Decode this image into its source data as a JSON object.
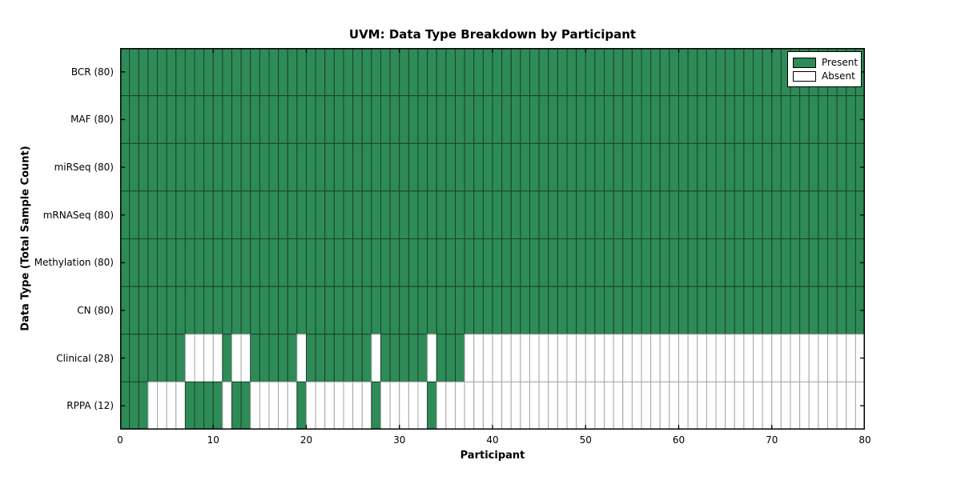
{
  "chart_data": {
    "type": "heatmap",
    "title": "UVM: Data Type Breakdown by Participant",
    "xlabel": "Participant",
    "ylabel": "Data Type (Total Sample Count)",
    "n_participants": 80,
    "x_ticks": [
      0,
      10,
      20,
      30,
      40,
      50,
      60,
      70,
      80
    ],
    "x_range": [
      0,
      80
    ],
    "rows": [
      {
        "label": "BCR (80)",
        "data_type": "BCR",
        "count": 80,
        "present_ranges": [
          [
            0,
            79
          ]
        ]
      },
      {
        "label": "MAF (80)",
        "data_type": "MAF",
        "count": 80,
        "present_ranges": [
          [
            0,
            79
          ]
        ]
      },
      {
        "label": "miRSeq (80)",
        "data_type": "miRSeq",
        "count": 80,
        "present_ranges": [
          [
            0,
            79
          ]
        ]
      },
      {
        "label": "mRNASeq (80)",
        "data_type": "mRNASeq",
        "count": 80,
        "present_ranges": [
          [
            0,
            79
          ]
        ]
      },
      {
        "label": "Methylation (80)",
        "data_type": "Methylation",
        "count": 80,
        "present_ranges": [
          [
            0,
            79
          ]
        ]
      },
      {
        "label": "CN (80)",
        "data_type": "CN",
        "count": 80,
        "present_ranges": [
          [
            0,
            79
          ]
        ]
      },
      {
        "label": "Clinical (28)",
        "data_type": "Clinical",
        "count": 28,
        "present_ranges": [
          [
            0,
            6
          ],
          [
            11,
            11
          ],
          [
            14,
            18
          ],
          [
            20,
            26
          ],
          [
            28,
            32
          ],
          [
            34,
            36
          ]
        ]
      },
      {
        "label": "RPPA (12)",
        "data_type": "RPPA",
        "count": 12,
        "present_ranges": [
          [
            0,
            2
          ],
          [
            7,
            10
          ],
          [
            12,
            13
          ],
          [
            19,
            19
          ],
          [
            27,
            27
          ],
          [
            33,
            33
          ]
        ]
      }
    ],
    "legend": [
      {
        "label": "Present",
        "color": "#2e8b57"
      },
      {
        "label": "Absent",
        "color": "#ffffff"
      }
    ],
    "colors": {
      "present": "#2e8b57",
      "present_border": "#17432a",
      "absent": "#ffffff",
      "absent_border": "#a6a6a6",
      "axis": "#000000"
    },
    "grid": false,
    "legend_position": "upper right"
  }
}
